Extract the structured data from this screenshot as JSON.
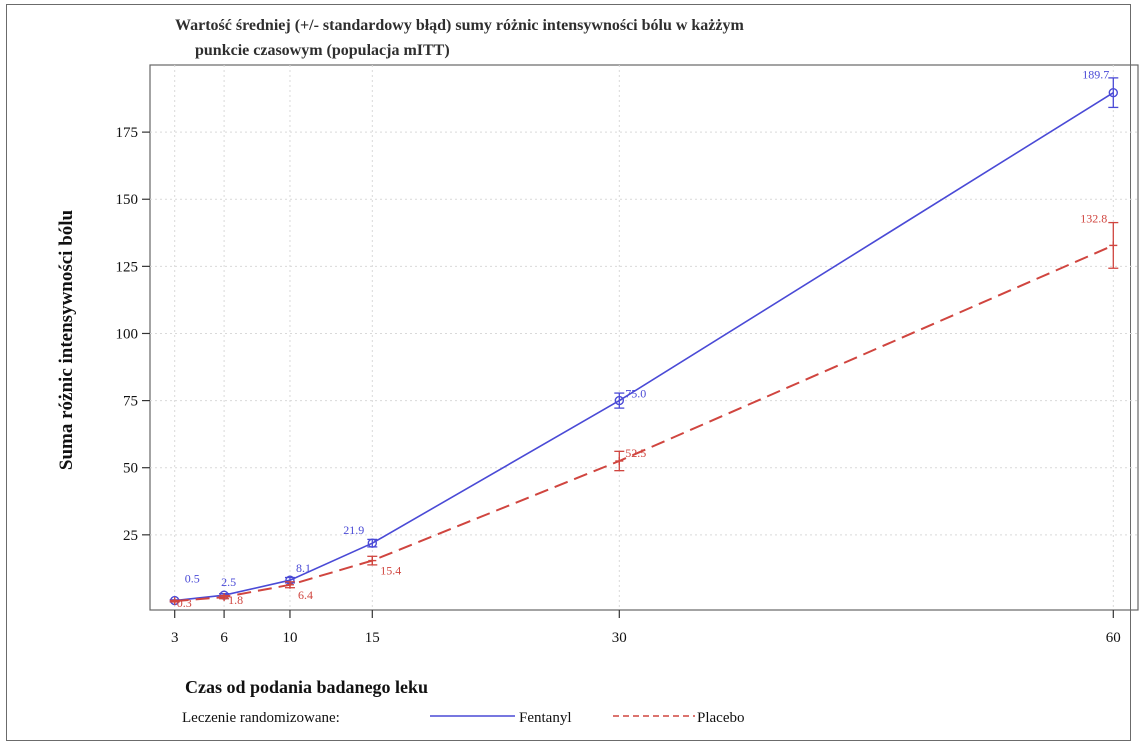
{
  "chart_data": {
    "type": "line",
    "title": "Wartość średniej (+/- standardowy błąd) sumy różnic intensywności bólu w każżym",
    "title_line2": "punkcie czasowym (populacja mITT)",
    "xlabel": "Czas od podania badanego leku",
    "ylabel": "Suma różnic intensywności bólu",
    "x_ticks": [
      3,
      6,
      10,
      15,
      30,
      60
    ],
    "y_ticks": [
      25,
      50,
      75,
      100,
      125,
      150,
      175
    ],
    "xlim": [
      1.5,
      61.5
    ],
    "ylim": [
      -3,
      200
    ],
    "grid": true,
    "legend": {
      "title": "Leczenie randomizowane:",
      "position": "bottom-left"
    },
    "series": [
      {
        "name": "Fentanyl",
        "color": "#4a4ad6",
        "dash": "solid",
        "x": [
          3,
          6,
          10,
          15,
          30,
          60
        ],
        "y": [
          0.5,
          2.5,
          8.1,
          21.9,
          75.0,
          189.7
        ],
        "err": [
          0.3,
          0.6,
          1.0,
          1.4,
          2.8,
          5.5
        ],
        "labels": [
          "0.5",
          "2.5",
          "8.1",
          "21.9",
          "75.0",
          "189.7"
        ]
      },
      {
        "name": "Placebo",
        "color": "#d0453f",
        "dash": "dashed",
        "x": [
          3,
          6,
          10,
          15,
          30,
          60
        ],
        "y": [
          0.3,
          1.8,
          6.4,
          15.4,
          52.5,
          132.8
        ],
        "err": [
          0.3,
          0.6,
          1.1,
          1.6,
          3.6,
          8.5
        ],
        "labels": [
          "0.3",
          "1.8",
          "6.4",
          "15.4",
          "52.5",
          "132.8"
        ]
      }
    ]
  }
}
